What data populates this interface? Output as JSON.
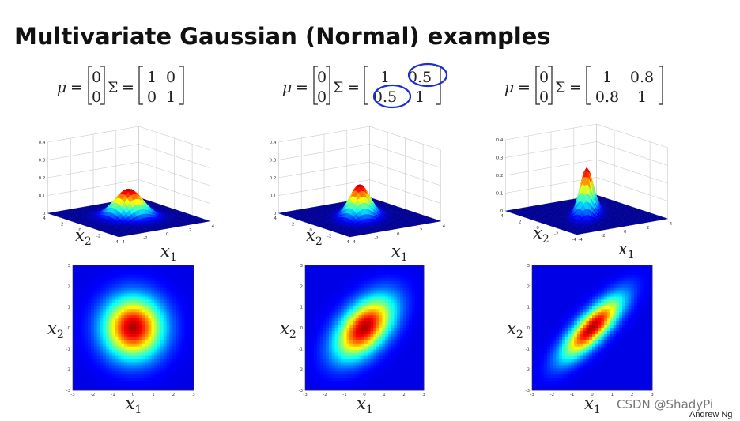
{
  "title": "Multivariate Gaussian (Normal) examples",
  "symbols": {
    "mu": "μ",
    "sigma": "Σ",
    "equals": "="
  },
  "axes": {
    "x1": {
      "symbol": "x",
      "subscript": "1"
    },
    "x2": {
      "symbol": "x",
      "subscript": "2"
    }
  },
  "surface_z_ticks": [
    0,
    0.1,
    0.2,
    0.3,
    0.4
  ],
  "surface_ticks": [
    -4,
    -2,
    0,
    2,
    4
  ],
  "map_ticks": [
    -3,
    -2,
    -1,
    0,
    1,
    2,
    3
  ],
  "panels": [
    {
      "mu": [
        0,
        0
      ],
      "sigma": [
        [
          1,
          0
        ],
        [
          0,
          1
        ]
      ]
    },
    {
      "mu": [
        0,
        0
      ],
      "sigma": [
        [
          1,
          0.5
        ],
        [
          0.5,
          1
        ]
      ]
    },
    {
      "mu": [
        0,
        0
      ],
      "sigma": [
        [
          1,
          0.8
        ],
        [
          0.8,
          1
        ]
      ]
    }
  ],
  "watermark": "CSDN @ShadyPi",
  "author": "Andrew Ng"
}
